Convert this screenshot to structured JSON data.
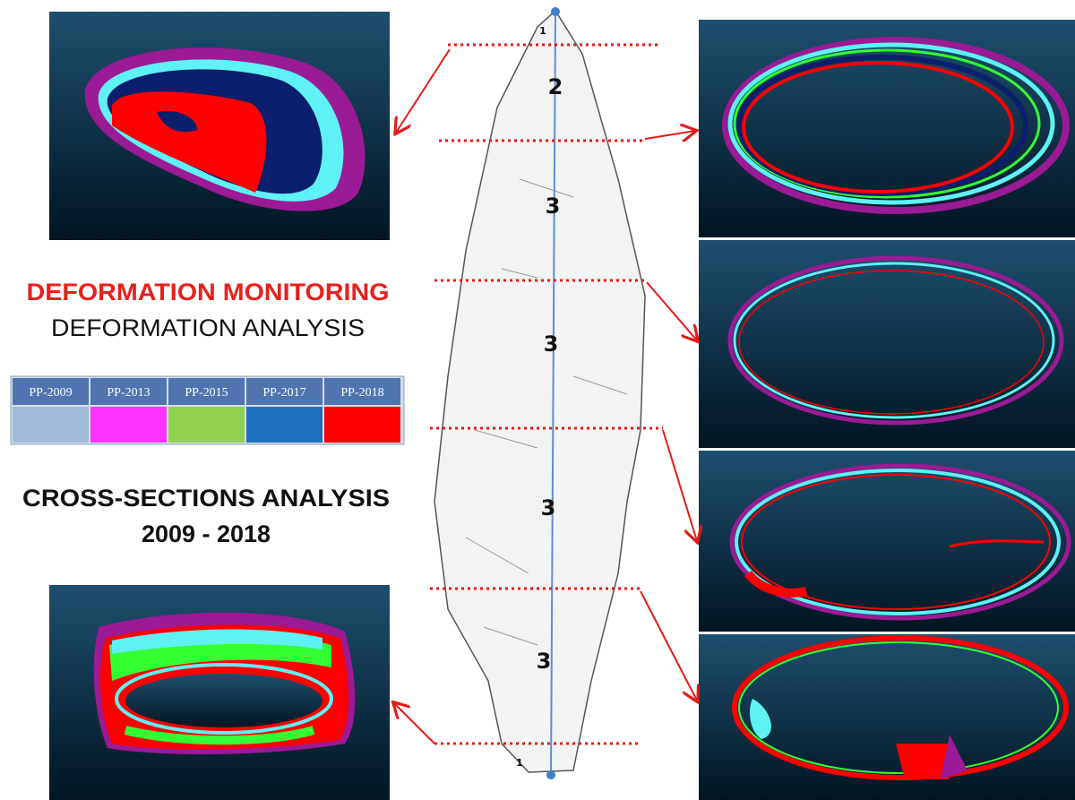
{
  "title": {
    "line1": "DEFORMATION MONITORING",
    "line2": "DEFORMATION ANALYSIS"
  },
  "legend": [
    {
      "label": "PP-2009",
      "color": "#a3bbdb"
    },
    {
      "label": "PP-2013",
      "color": "#ff33ff"
    },
    {
      "label": "PP-2015",
      "color": "#92d050"
    },
    {
      "label": "PP-2017",
      "color": "#1f6fbf"
    },
    {
      "label": "PP-2018",
      "color": "#ff0000"
    }
  ],
  "subtitle": {
    "line1": "CROSS-SECTIONS ANALYSIS",
    "line2": "2009 - 2018"
  },
  "segment_labels": [
    "1",
    "2",
    "3",
    "3",
    "3",
    "3",
    "1"
  ]
}
